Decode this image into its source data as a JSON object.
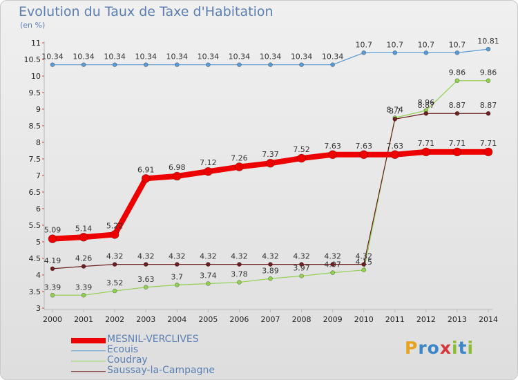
{
  "page": {
    "title": "Evolution du Taux de Taxe d'Habitation",
    "subtitle": "(en %)",
    "logo": {
      "letters": [
        "P",
        "r",
        "o",
        "x",
        "i",
        "t",
        "i"
      ],
      "colors": [
        "#e8a21d",
        "#3a86c8",
        "#3a86c8",
        "#d6353a",
        "#8bbd2f",
        "#3a86c8",
        "#8bbd2f"
      ]
    }
  },
  "chart_data": {
    "type": "line",
    "title": "Evolution du Taux de Taxe d'Habitation",
    "ylabel": "(en %)",
    "x": [
      "2000",
      "2001",
      "2002",
      "2003",
      "2004",
      "2005",
      "2006",
      "2007",
      "2008",
      "2009",
      "2010",
      "2011",
      "2012",
      "2013",
      "2014"
    ],
    "ylim": [
      3,
      11
    ],
    "yticks": [
      3,
      3.5,
      4,
      4.5,
      5,
      5.5,
      6,
      6.5,
      7,
      7.5,
      8,
      8.5,
      9,
      9.5,
      10,
      10.5,
      11
    ],
    "ytick_labels": [
      "3",
      "3.5",
      "4",
      "4.5",
      "5",
      "5.5",
      "6",
      "6.5",
      "7",
      "7.5",
      "8",
      "8.5",
      "9",
      "9.5",
      "10",
      "10.5",
      "11"
    ],
    "grid": false,
    "legend_position": "bottom-left",
    "series": [
      {
        "name": "Ecouis",
        "color": "#5b9bd5",
        "width": 1.2,
        "marker": 3,
        "values": [
          10.34,
          10.34,
          10.34,
          10.34,
          10.34,
          10.34,
          10.34,
          10.34,
          10.34,
          10.34,
          10.7,
          10.7,
          10.7,
          10.7,
          10.81
        ],
        "labels": [
          "10.34",
          "10.34",
          "10.34",
          "10.34",
          "10.34",
          "10.34",
          "10.34",
          "10.34",
          "10.34",
          "10.34",
          "10.7",
          "10.7",
          "10.7",
          "10.7",
          "10.81"
        ]
      },
      {
        "name": "Coudray",
        "color": "#92d050",
        "width": 1.2,
        "marker": 3,
        "values": [
          3.39,
          3.39,
          3.52,
          3.63,
          3.7,
          3.74,
          3.78,
          3.89,
          3.97,
          4.07,
          4.15,
          8.74,
          8.96,
          9.86,
          9.86
        ],
        "labels": [
          "3.39",
          "3.39",
          "3.52",
          "3.63",
          "3.7",
          "3.74",
          "3.78",
          "3.89",
          "3.97",
          "4.07",
          "4.15",
          "8.74",
          "8.96",
          "9.86",
          "9.86"
        ]
      },
      {
        "name": "Saussay-la-Campagne",
        "color": "#6b1f1f",
        "width": 1.2,
        "marker": 3,
        "values": [
          4.19,
          4.26,
          4.32,
          4.32,
          4.32,
          4.32,
          4.32,
          4.32,
          4.32,
          4.32,
          4.32,
          8.7,
          8.87,
          8.87,
          8.87
        ],
        "labels": [
          "4.19",
          "4.26",
          "4.32",
          "4.32",
          "4.32",
          "4.32",
          "4.32",
          "4.32",
          "4.32",
          "4.32",
          "4.32",
          "8.7",
          "8.87",
          "8.87",
          "8.87"
        ]
      },
      {
        "name": "MESNIL-VERCLIVES",
        "color": "#ee0000",
        "width": 8,
        "marker": 6,
        "values": [
          5.09,
          5.14,
          5.22,
          6.91,
          6.98,
          7.12,
          7.26,
          7.37,
          7.52,
          7.63,
          7.63,
          7.63,
          7.71,
          7.71,
          7.71
        ],
        "labels": [
          "5.09",
          "5.14",
          "5.22",
          "6.91",
          "6.98",
          "7.12",
          "7.26",
          "7.37",
          "7.52",
          "7.63",
          "7.63",
          "7.63",
          "7.71",
          "7.71",
          "7.71"
        ]
      }
    ],
    "legend": [
      {
        "name": "MESNIL-VERCLIVES",
        "color": "#ee0000",
        "width": 8
      },
      {
        "name": "Ecouis",
        "color": "#5b9bd5",
        "width": 1.5
      },
      {
        "name": "Coudray",
        "color": "#92d050",
        "width": 1.5
      },
      {
        "name": "Saussay-la-Campagne",
        "color": "#6b1f1f",
        "width": 1.5
      }
    ]
  }
}
